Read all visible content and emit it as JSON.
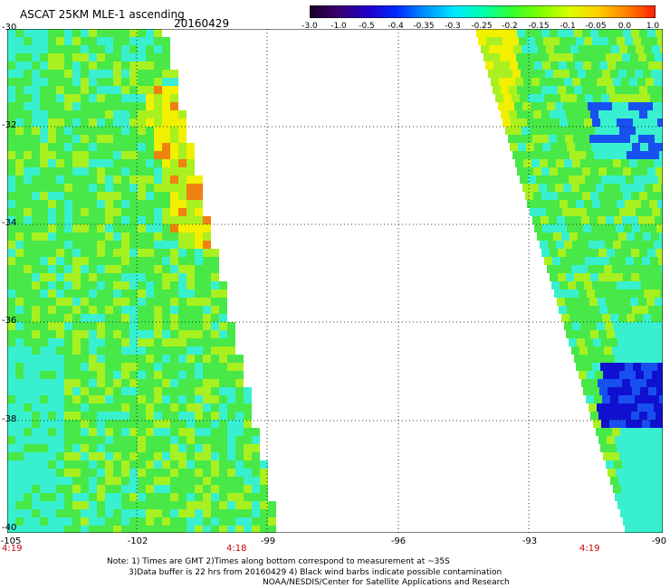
{
  "header": {
    "title": "ASCAT 25KM MLE-1 ascending",
    "date": "20160429"
  },
  "colorbar": {
    "ticks": [
      "-3.0",
      "-1.0",
      "-0.5",
      "-0.4",
      "-0.35",
      "-0.3",
      "-0.25",
      "-0.2",
      "-0.15",
      "-0.1",
      "-0.05",
      "0.0",
      "1.0"
    ],
    "colors": [
      "#1a0028",
      "#3a0070",
      "#2200c8",
      "#0028ff",
      "#0090ff",
      "#00e8ff",
      "#00ffb0",
      "#30ff30",
      "#80ff00",
      "#d8ff00",
      "#ffd000",
      "#ff8000",
      "#ff2000"
    ]
  },
  "map": {
    "lat_labels": [
      "-30",
      "-32",
      "-34",
      "-36",
      "-38",
      "-40"
    ],
    "lon_labels": [
      "-105",
      "-102",
      "-99",
      "-96",
      "-93",
      "-90"
    ],
    "time_labels": {
      "left": "4:19",
      "middle": "4:18",
      "right": "4:19"
    },
    "palette": {
      "cyan": "#38f0d0",
      "green": "#48e848",
      "lime": "#a8f020",
      "yellow": "#f0f000",
      "orange": "#f08010",
      "blue": "#1850f0",
      "deepblue": "#1010d0"
    }
  },
  "notes": [
    "Note: 1) Times are GMT 2)Times along bottom correspond to measurement at ~35S",
    "3)Data buffer is 22 hrs from 20160429 4) Black wind barbs indicate possible contamination",
    "NOAA/NESDIS/Center for Satellite Applications and Research"
  ]
}
